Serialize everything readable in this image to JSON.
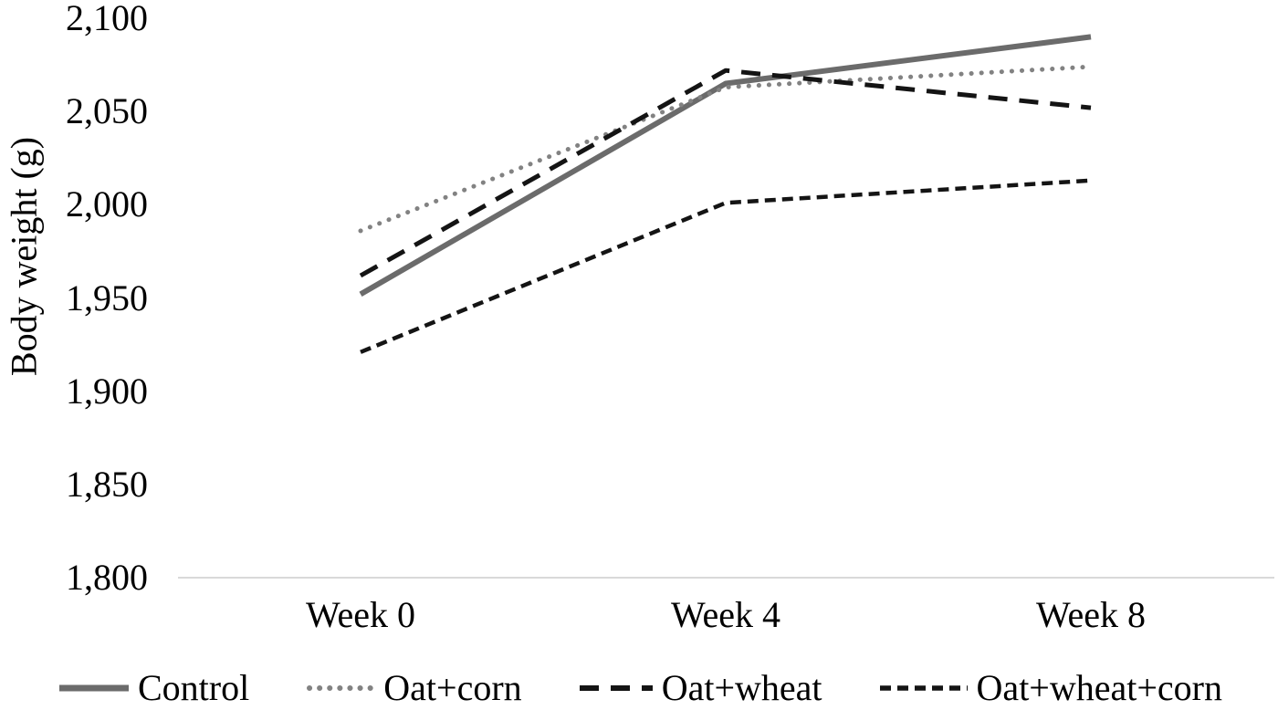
{
  "figure": {
    "background": "#ffffff",
    "text_color": "#000000"
  },
  "chart_data": {
    "type": "line",
    "ylabel": "Body weight (g)",
    "x": [
      "Week 0",
      "Week 4",
      "Week 8"
    ],
    "series": [
      {
        "name": "Control",
        "values": [
          1952,
          2065,
          2090
        ],
        "color": "#6b6b6b",
        "line_style": "solid"
      },
      {
        "name": "Oat+corn",
        "values": [
          1986,
          2063,
          2074
        ],
        "color": "#828282",
        "line_style": "dotted"
      },
      {
        "name": "Oat+wheat",
        "values": [
          1962,
          2072,
          2052
        ],
        "color": "#141414",
        "line_style": "dashed-long"
      },
      {
        "name": "Oat+wheat+corn",
        "values": [
          1921,
          2001,
          2013
        ],
        "color": "#141414",
        "line_style": "dashed-short"
      }
    ],
    "ylim": [
      1800,
      2100
    ],
    "yticks": [
      "2,100",
      "2,050",
      "2,000",
      "1,950",
      "1,900",
      "1,850",
      "1,800"
    ],
    "ytick_values": [
      2100,
      2050,
      2000,
      1950,
      1900,
      1850,
      1800
    ],
    "grid": false,
    "legend_position": "bottom",
    "axis_line_color": "#d9d9d9"
  }
}
